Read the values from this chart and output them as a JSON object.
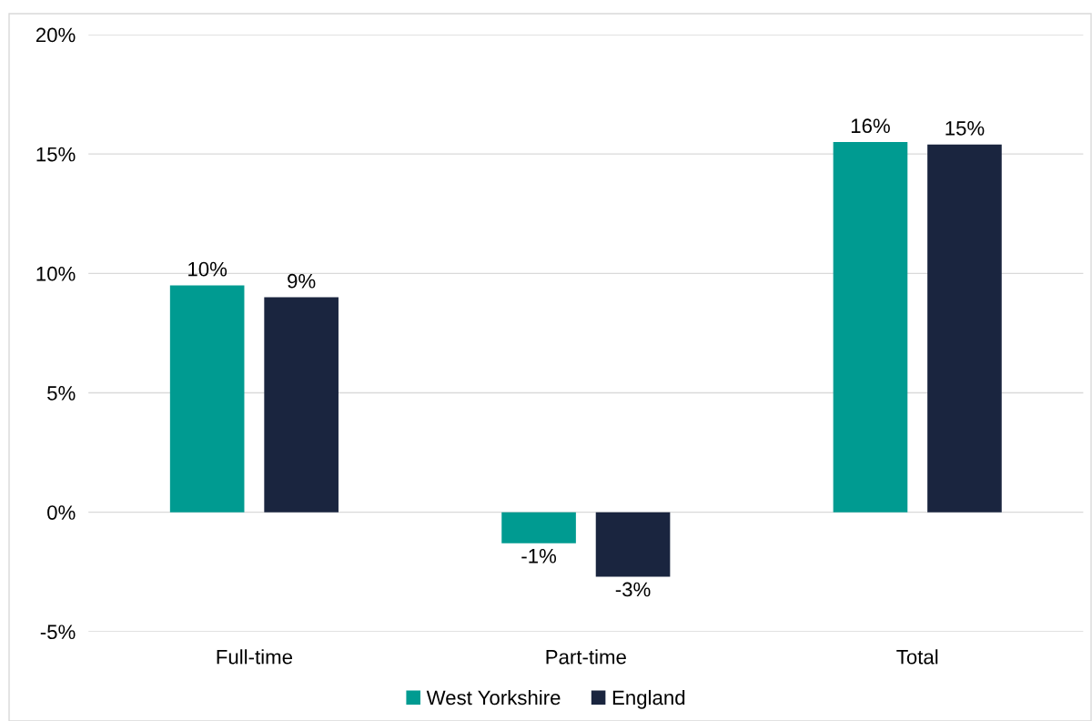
{
  "chart_data": {
    "type": "bar",
    "categories": [
      "Full-time",
      "Part-time",
      "Total"
    ],
    "series": [
      {
        "name": "West Yorkshire",
        "color": "#009b91",
        "values": [
          9.5,
          -1.3,
          15.5
        ],
        "value_labels": [
          "10%",
          "-1%",
          "16%"
        ]
      },
      {
        "name": "England",
        "color": "#1a253f",
        "values": [
          9.0,
          -2.7,
          15.4
        ],
        "value_labels": [
          "9%",
          "-3%",
          "15%"
        ]
      }
    ],
    "ylim": [
      -5,
      20
    ],
    "yticks": [
      {
        "value": -5,
        "label": "-5%"
      },
      {
        "value": 0,
        "label": "0%"
      },
      {
        "value": 5,
        "label": "5%"
      },
      {
        "value": 10,
        "label": "10%"
      },
      {
        "value": 15,
        "label": "15%"
      },
      {
        "value": 20,
        "label": "20%"
      }
    ],
    "grid": "y",
    "legend": "bottom"
  }
}
